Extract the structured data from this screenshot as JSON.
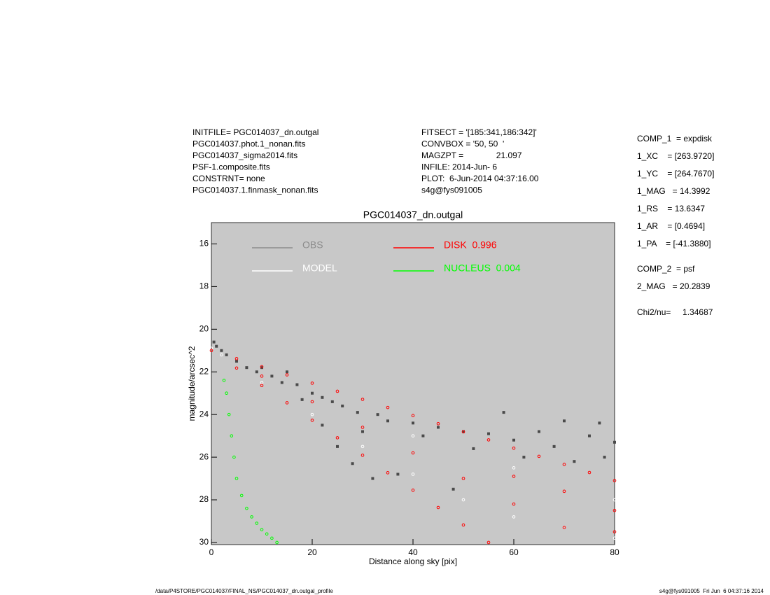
{
  "header": {
    "left": [
      "INITFILE= PGC014037_dn.outgal",
      "PGC014037.phot.1_nonan.fits",
      "PGC014037_sigma2014.fits",
      "PSF-1.composite.fits",
      "CONSTRNT= none",
      "PGC014037.1.finmask_nonan.fits"
    ],
    "middle": [
      "FITSECT = '[185:341,186:342]'",
      "CONVBOX = '50, 50  '",
      "MAGZPT =              21.097",
      "INFILE: 2014-Jun- 6",
      "PLOT:  6-Jun-2014 04:37:16.00",
      "s4g@fys091005"
    ]
  },
  "side": [
    [
      "COMP_1  = expdisk",
      "1_XC    = [263.9720]",
      "1_YC    = [264.7670]",
      "1_MAG   = 14.3992",
      "1_RS    = 13.6347",
      "1_AR    = [0.4694]",
      "1_PA    = [-41.3880]"
    ],
    [
      "COMP_2  = psf",
      "2_MAG   = 20.2839"
    ],
    [
      "Chi2/nu=     1.34687"
    ]
  ],
  "footer": {
    "left": "/data/P4STORE/PGC014037/FINAL_NS/PGC014037_dn.outgal_profile",
    "right": "s4g@fys091005  Fri Jun  6 04:37:16 2014"
  },
  "chart_data": {
    "type": "scatter",
    "title": "PGC014037_dn.outgal",
    "x_label": "Distance along sky [pix]",
    "y_label": "magnitude/arcsec^2",
    "xlim": [
      0,
      80
    ],
    "ylim": [
      30.1,
      15
    ],
    "xticks": [
      0,
      20,
      40,
      60,
      80
    ],
    "yticks": [
      16,
      18,
      20,
      22,
      24,
      26,
      28,
      30
    ],
    "background": "#c8c8c8",
    "series": [
      {
        "name": "OBS",
        "color": "#8c8c8c",
        "marker_color": "#4a4a4a",
        "x": [
          0.5,
          1,
          2,
          3,
          5,
          7,
          9,
          10,
          12,
          14,
          15,
          17,
          18,
          20,
          22,
          22,
          24,
          25,
          26,
          28,
          29,
          30,
          32,
          33,
          35,
          37,
          40,
          42,
          45,
          48,
          50,
          52,
          55,
          58,
          60,
          62,
          65,
          68,
          70,
          72,
          75,
          77,
          78,
          80
        ],
        "y": [
          20.6,
          20.8,
          21.0,
          21.2,
          21.5,
          21.8,
          22.0,
          21.8,
          22.2,
          22.5,
          22.0,
          22.6,
          23.3,
          23.0,
          23.2,
          24.5,
          23.4,
          25.5,
          23.6,
          26.3,
          23.9,
          24.8,
          27.0,
          24.0,
          24.3,
          26.8,
          24.4,
          25.0,
          24.6,
          27.5,
          24.8,
          25.6,
          24.9,
          23.9,
          25.2,
          26.0,
          24.8,
          25.5,
          24.3,
          26.2,
          25.0,
          24.4,
          26.0,
          25.3
        ]
      },
      {
        "name": "MODEL",
        "color": "#ffffff",
        "x": [
          0,
          2,
          10,
          20,
          30,
          40,
          50,
          60,
          70,
          80,
          40,
          60,
          80
        ],
        "y": [
          20.9,
          21.2,
          22.5,
          24.0,
          25.5,
          26.8,
          28.0,
          28.8,
          29.3,
          29.8,
          25.0,
          26.5,
          28.0
        ]
      },
      {
        "name": "DISK  0.996",
        "color": "#ff0000",
        "x": [
          0,
          5,
          10,
          15,
          20,
          25,
          30,
          35,
          40,
          45,
          50,
          55,
          60,
          65,
          70,
          75,
          80,
          5,
          10,
          15,
          20,
          25,
          30,
          35,
          40,
          45,
          50,
          55,
          10,
          20,
          30,
          40,
          50,
          60,
          70,
          80,
          60,
          70,
          80
        ],
        "y": [
          21.0,
          21.38,
          21.76,
          22.14,
          22.53,
          22.91,
          23.29,
          23.67,
          24.05,
          24.43,
          24.81,
          25.19,
          25.58,
          25.96,
          26.34,
          26.72,
          27.1,
          21.82,
          22.64,
          23.45,
          24.27,
          25.09,
          25.91,
          26.73,
          27.55,
          28.36,
          29.18,
          30.0,
          22.2,
          23.4,
          24.6,
          25.8,
          27.0,
          28.2,
          29.3,
          28.5,
          26.9,
          27.6,
          29.5
        ]
      },
      {
        "name": "NUCLEUS  0.004",
        "color": "#00ff00",
        "x": [
          2.5,
          3,
          3.5,
          4,
          4.5,
          5,
          6,
          7,
          8,
          9,
          10,
          11,
          12,
          13
        ],
        "y": [
          22.4,
          23.0,
          24.0,
          25.0,
          26.0,
          27.0,
          27.8,
          28.4,
          28.8,
          29.1,
          29.4,
          29.6,
          29.8,
          30.0
        ]
      }
    ]
  }
}
